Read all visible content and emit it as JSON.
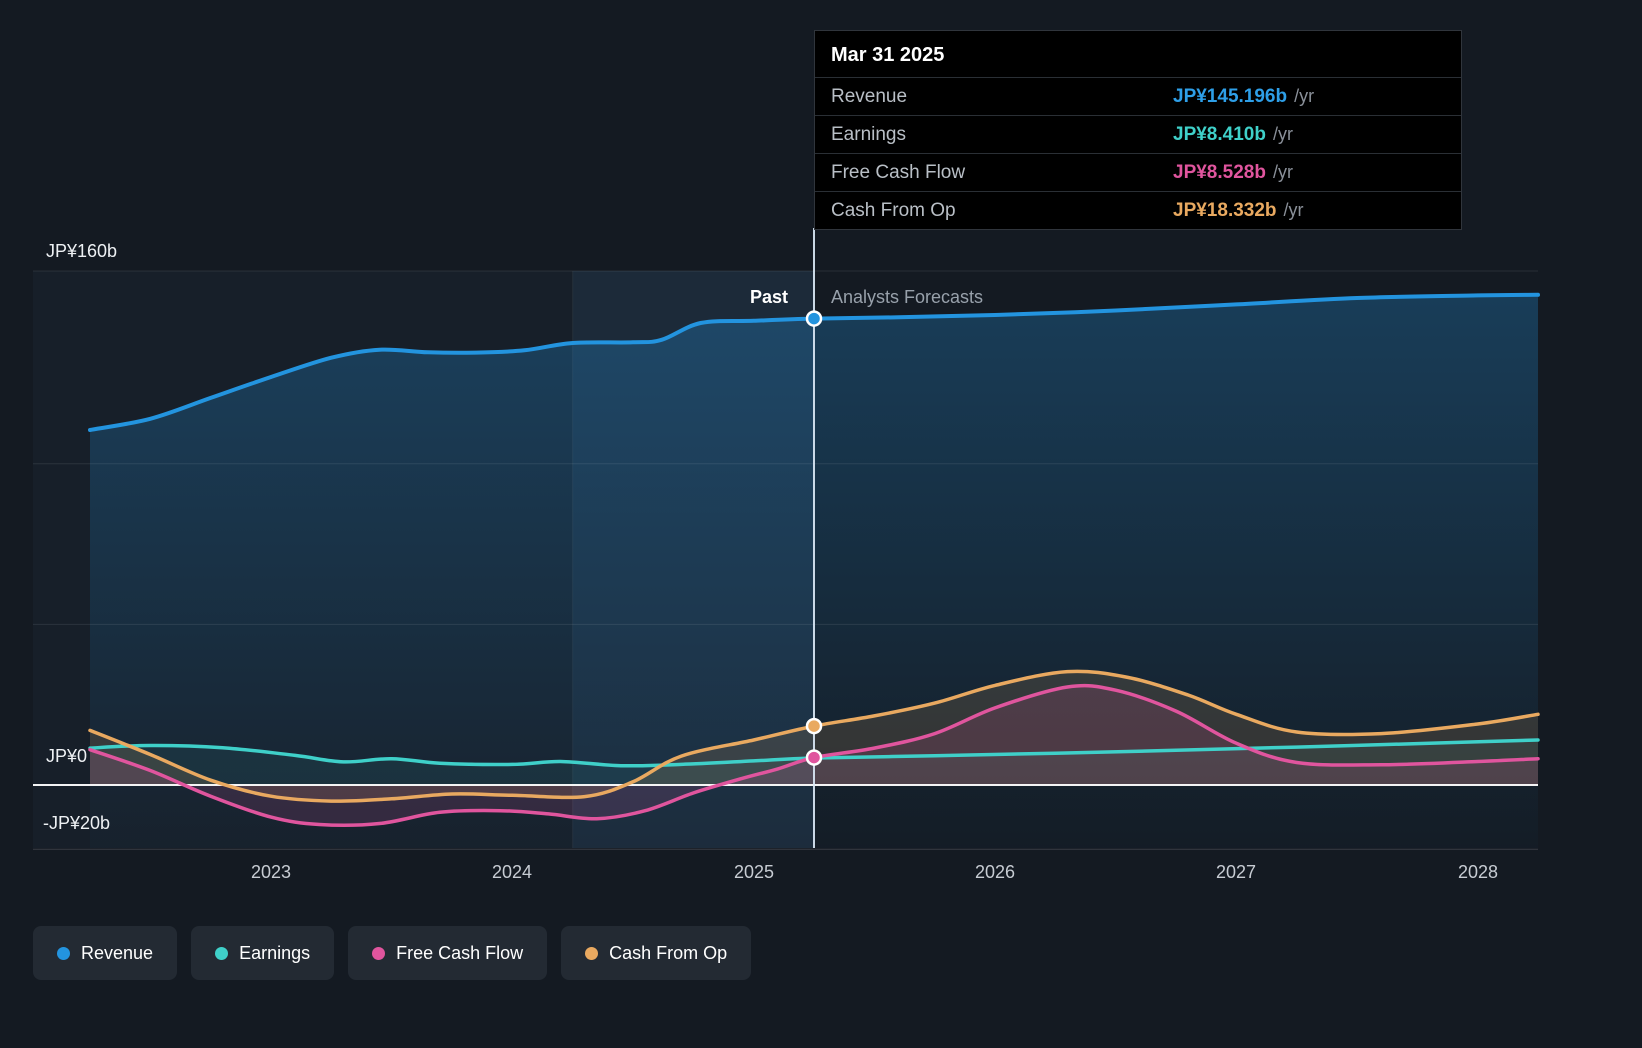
{
  "tooltip": {
    "date": "Mar 31 2025",
    "rows": [
      {
        "label": "Revenue",
        "value": "JP¥145.196b",
        "suffix": "/yr",
        "color": "#2e9fe8"
      },
      {
        "label": "Earnings",
        "value": "JP¥8.410b",
        "suffix": "/yr",
        "color": "#3fd0c9"
      },
      {
        "label": "Free Cash Flow",
        "value": "JP¥8.528b",
        "suffix": "/yr",
        "color": "#e0559e"
      },
      {
        "label": "Cash From Op",
        "value": "JP¥18.332b",
        "suffix": "/yr",
        "color": "#e9a960"
      }
    ]
  },
  "phase": {
    "past": "Past",
    "forecast": "Analysts Forecasts"
  },
  "y_axis": {
    "top": "JP¥160b",
    "zero": "JP¥0",
    "bottom": "-JP¥20b"
  },
  "legend": [
    {
      "label": "Revenue",
      "color": "#2394df"
    },
    {
      "label": "Earnings",
      "color": "#3fd0c9"
    },
    {
      "label": "Free Cash Flow",
      "color": "#e0559e"
    },
    {
      "label": "Cash From Op",
      "color": "#e9a960"
    }
  ],
  "chart_data": {
    "type": "line",
    "unit": "JP¥ billions per year",
    "x_range": [
      2022.25,
      2028.25
    ],
    "x_ticks": [
      2023,
      2024,
      2025,
      2026,
      2027,
      2028
    ],
    "y_grid_values": [
      160,
      100,
      50,
      0,
      -20
    ],
    "y_axis_labeled_values": [
      160,
      0,
      -20
    ],
    "divider_x": 2025.25,
    "divider_date": "Mar 31 2025",
    "series": [
      {
        "name": "Revenue",
        "color": "#2394df",
        "marker": true,
        "past": [
          [
            2022.25,
            110.5
          ],
          [
            2022.5,
            114
          ],
          [
            2022.75,
            120.5
          ],
          [
            2023,
            127
          ],
          [
            2023.25,
            133
          ],
          [
            2023.45,
            135.5
          ],
          [
            2023.65,
            134.7
          ],
          [
            2023.85,
            134.6
          ],
          [
            2024.05,
            135.3
          ],
          [
            2024.25,
            137.6
          ],
          [
            2024.5,
            137.8
          ],
          [
            2024.62,
            138.6
          ],
          [
            2024.78,
            143.8
          ],
          [
            2025,
            144.5
          ],
          [
            2025.25,
            145.196
          ]
        ],
        "forecast": [
          [
            2025.25,
            145.196
          ],
          [
            2025.6,
            145.6
          ],
          [
            2026,
            146.3
          ],
          [
            2026.5,
            147.7
          ],
          [
            2027,
            149.6
          ],
          [
            2027.5,
            151.6
          ],
          [
            2028,
            152.4
          ],
          [
            2028.25,
            152.6
          ]
        ]
      },
      {
        "name": "Earnings",
        "color": "#3fd0c9",
        "marker": false,
        "past": [
          [
            2022.25,
            11.5
          ],
          [
            2022.5,
            12.3
          ],
          [
            2022.8,
            11.6
          ],
          [
            2023.1,
            9.2
          ],
          [
            2023.3,
            7.2
          ],
          [
            2023.5,
            8.2
          ],
          [
            2023.7,
            6.8
          ],
          [
            2024,
            6.4
          ],
          [
            2024.2,
            7.3
          ],
          [
            2024.45,
            6
          ],
          [
            2024.7,
            6.4
          ],
          [
            2025,
            7.5
          ],
          [
            2025.25,
            8.41
          ]
        ],
        "forecast": [
          [
            2025.25,
            8.41
          ],
          [
            2025.75,
            9.1
          ],
          [
            2026.25,
            9.9
          ],
          [
            2026.75,
            10.8
          ],
          [
            2027.25,
            11.8
          ],
          [
            2027.75,
            12.9
          ],
          [
            2028.25,
            14
          ]
        ]
      },
      {
        "name": "Cash From Op",
        "color": "#e9a960",
        "marker": true,
        "past": [
          [
            2022.25,
            17
          ],
          [
            2022.5,
            9.5
          ],
          [
            2022.75,
            1.5
          ],
          [
            2023,
            -3.5
          ],
          [
            2023.25,
            -5
          ],
          [
            2023.5,
            -4.3
          ],
          [
            2023.75,
            -2.8
          ],
          [
            2024,
            -3.2
          ],
          [
            2024.3,
            -3.6
          ],
          [
            2024.5,
            1
          ],
          [
            2024.7,
            9
          ],
          [
            2025,
            14
          ],
          [
            2025.25,
            18.332
          ]
        ],
        "forecast": [
          [
            2025.25,
            18.332
          ],
          [
            2025.5,
            21.5
          ],
          [
            2025.75,
            25.5
          ],
          [
            2026,
            31
          ],
          [
            2026.3,
            35.3
          ],
          [
            2026.55,
            33.5
          ],
          [
            2026.8,
            28
          ],
          [
            2027,
            22
          ],
          [
            2027.25,
            16.5
          ],
          [
            2027.6,
            16
          ],
          [
            2028,
            19
          ],
          [
            2028.25,
            22
          ]
        ]
      },
      {
        "name": "Free Cash Flow",
        "color": "#e0559e",
        "marker": true,
        "past": [
          [
            2022.25,
            11
          ],
          [
            2022.5,
            4.5
          ],
          [
            2022.75,
            -3.5
          ],
          [
            2023,
            -10
          ],
          [
            2023.2,
            -12.3
          ],
          [
            2023.45,
            -12
          ],
          [
            2023.7,
            -8.5
          ],
          [
            2023.95,
            -8
          ],
          [
            2024.15,
            -9
          ],
          [
            2024.35,
            -10.5
          ],
          [
            2024.55,
            -8
          ],
          [
            2024.75,
            -2.5
          ],
          [
            2024.95,
            2
          ],
          [
            2025.1,
            5
          ],
          [
            2025.25,
            8.528
          ]
        ],
        "forecast": [
          [
            2025.25,
            8.528
          ],
          [
            2025.5,
            11.5
          ],
          [
            2025.75,
            16
          ],
          [
            2026,
            24
          ],
          [
            2026.3,
            30.5
          ],
          [
            2026.5,
            29.5
          ],
          [
            2026.75,
            23
          ],
          [
            2027,
            13
          ],
          [
            2027.25,
            7
          ],
          [
            2027.6,
            6.3
          ],
          [
            2028,
            7.3
          ],
          [
            2028.25,
            8.2
          ]
        ]
      }
    ]
  }
}
